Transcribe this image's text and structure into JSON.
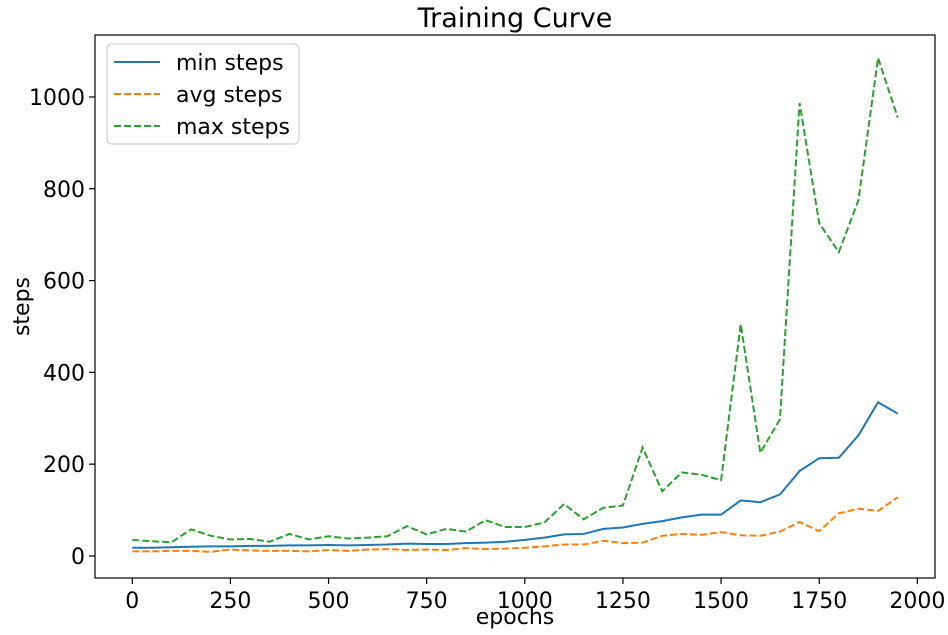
{
  "chart_data": {
    "type": "line",
    "title": "Training Curve",
    "xlabel": "epochs",
    "ylabel": "steps",
    "xlim": [
      -95,
      2045
    ],
    "ylim": [
      -48,
      1135
    ],
    "xticks": [
      0,
      250,
      500,
      750,
      1000,
      1250,
      1500,
      1750,
      2000
    ],
    "yticks": [
      0,
      200,
      400,
      600,
      800,
      1000
    ],
    "grid": false,
    "legend": "top-left",
    "x": [
      0,
      50,
      100,
      150,
      200,
      250,
      300,
      350,
      400,
      450,
      500,
      550,
      600,
      650,
      700,
      750,
      800,
      850,
      900,
      950,
      1000,
      1050,
      1100,
      1150,
      1200,
      1250,
      1300,
      1350,
      1400,
      1450,
      1500,
      1550,
      1600,
      1650,
      1700,
      1750,
      1800,
      1850,
      1900,
      1950
    ],
    "series": [
      {
        "name": "min steps",
        "color": "#1f77b4",
        "dash": "solid",
        "values": [
          18,
          18,
          19,
          20,
          21,
          21,
          22,
          22,
          23,
          23,
          24,
          23,
          24,
          25,
          27,
          26,
          26,
          28,
          29,
          31,
          35,
          40,
          47,
          48,
          59,
          62,
          70,
          76,
          84,
          90,
          90,
          121,
          117,
          134,
          185,
          213,
          214,
          263,
          335,
          310
        ]
      },
      {
        "name": "avg steps",
        "color": "#ff7f0e",
        "dash": "dashed",
        "values": [
          10,
          10,
          11,
          11,
          9,
          14,
          12,
          11,
          11,
          10,
          13,
          11,
          14,
          15,
          13,
          14,
          13,
          17,
          15,
          16,
          18,
          21,
          25,
          25,
          33,
          28,
          29,
          44,
          48,
          46,
          52,
          45,
          44,
          53,
          74,
          54,
          93,
          103,
          98,
          128
        ]
      },
      {
        "name": "max steps",
        "color": "#2ca02c",
        "dash": "dashed",
        "values": [
          35,
          32,
          30,
          58,
          44,
          36,
          37,
          31,
          48,
          36,
          43,
          38,
          40,
          43,
          65,
          47,
          59,
          53,
          78,
          63,
          63,
          73,
          113,
          80,
          105,
          110,
          236,
          141,
          182,
          177,
          165,
          505,
          225,
          298,
          987,
          725,
          662,
          775,
          1085,
          955
        ]
      }
    ]
  }
}
